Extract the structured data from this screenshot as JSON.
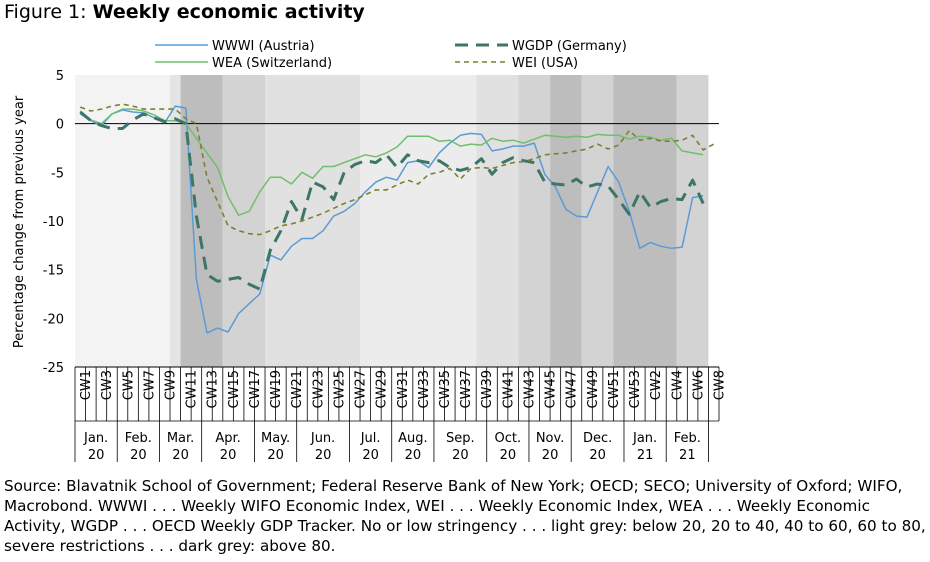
{
  "figure": {
    "title_prefix": "Figure 1: ",
    "title_bold": "Weekly economic activity"
  },
  "source": "Source: Blavatnik School of Government; Federal Reserve Bank of New York; OECD; SECO; University of Oxford; WIFO, Macrobond. WWWI . . . Weekly WIFO Economic Index, WEI . . . Weekly Economic Index, WEA . . . Weekly Economic Activity, WGDP . . . OECD Weekly GDP Tracker. No or low stringency . . . light grey: below 20, 20 to 40, 40 to 60, 60 to 80, severe restrictions . . . dark grey: above 80.",
  "chart_data": {
    "type": "line",
    "ylabel": "Percentage change from previous year",
    "ylim": [
      -25,
      5
    ],
    "yticks": [
      5,
      0,
      -5,
      -10,
      -15,
      -20,
      -25
    ],
    "week_labels": [
      "CW1",
      "CW3",
      "CW5",
      "CW7",
      "CW9",
      "CW11",
      "CW13",
      "CW15",
      "CW17",
      "CW19",
      "CW21",
      "CW23",
      "CW25",
      "CW27",
      "CW29",
      "CW31",
      "CW33",
      "CW35",
      "CW37",
      "CW39",
      "CW41",
      "CW43",
      "CW45",
      "CW47",
      "CW49",
      "CW51",
      "CW53",
      "CW2",
      "CW4",
      "CW6",
      "CW8"
    ],
    "month_labels": [
      {
        "month": "Jan.",
        "year": "20",
        "weeks": [
          1,
          5
        ]
      },
      {
        "month": "Feb.",
        "year": "20",
        "weeks": [
          5,
          9
        ]
      },
      {
        "month": "Mar.",
        "year": "20",
        "weeks": [
          9,
          13
        ]
      },
      {
        "month": "Apr.",
        "year": "20",
        "weeks": [
          13,
          18
        ]
      },
      {
        "month": "May.",
        "year": "20",
        "weeks": [
          18,
          22
        ]
      },
      {
        "month": "Jun.",
        "year": "20",
        "weeks": [
          22,
          27
        ]
      },
      {
        "month": "Jul.",
        "year": "20",
        "weeks": [
          27,
          31
        ]
      },
      {
        "month": "Aug.",
        "year": "20",
        "weeks": [
          31,
          35
        ]
      },
      {
        "month": "Sep.",
        "year": "20",
        "weeks": [
          35,
          40
        ]
      },
      {
        "month": "Oct.",
        "year": "20",
        "weeks": [
          40,
          44
        ]
      },
      {
        "month": "Nov.",
        "year": "20",
        "weeks": [
          44,
          48
        ]
      },
      {
        "month": "Dec.",
        "year": "20",
        "weeks": [
          48,
          53
        ]
      },
      {
        "month": "Jan.",
        "year": "21",
        "weeks": [
          53,
          57
        ]
      },
      {
        "month": "Feb.",
        "year": "21",
        "weeks": [
          57,
          61
        ]
      }
    ],
    "stringency_bands": [
      {
        "weeks": [
          1,
          10
        ],
        "shade": "#f3f3f3"
      },
      {
        "weeks": [
          10,
          11
        ],
        "shade": "#e4e4e4"
      },
      {
        "weeks": [
          11,
          15
        ],
        "shade": "#bdbdbd"
      },
      {
        "weeks": [
          15,
          19
        ],
        "shade": "#d3d3d3"
      },
      {
        "weeks": [
          19,
          28
        ],
        "shade": "#e1e1e1"
      },
      {
        "weeks": [
          28,
          39
        ],
        "shade": "#ececec"
      },
      {
        "weeks": [
          39,
          43
        ],
        "shade": "#e1e1e1"
      },
      {
        "weeks": [
          43,
          46
        ],
        "shade": "#d3d3d3"
      },
      {
        "weeks": [
          46,
          49
        ],
        "shade": "#bdbdbd"
      },
      {
        "weeks": [
          49,
          52
        ],
        "shade": "#d3d3d3"
      },
      {
        "weeks": [
          52,
          58
        ],
        "shade": "#bdbdbd"
      },
      {
        "weeks": [
          58,
          61
        ],
        "shade": "#d3d3d3"
      }
    ],
    "series": [
      {
        "name": "WWWI (Austria)",
        "color": "#5b9bd5",
        "width": 1.5,
        "dash": "",
        "legend_pos": "top-left",
        "weeks": [
          1,
          2,
          3,
          4,
          5,
          6,
          7,
          8,
          9,
          10,
          11,
          12,
          13,
          14,
          15,
          16,
          17,
          18,
          19,
          20,
          21,
          22,
          23,
          24,
          25,
          26,
          27,
          28,
          29,
          30,
          31,
          32,
          33,
          34,
          35,
          36,
          37,
          38,
          39,
          40,
          41,
          42,
          43,
          44,
          45,
          46,
          47,
          48,
          49,
          50,
          51,
          52,
          53,
          54,
          55,
          56,
          57,
          58,
          59,
          60
        ],
        "values": [
          1.0,
          0.3,
          -0.2,
          1.0,
          1.4,
          1.2,
          1.1,
          0.6,
          0.1,
          1.8,
          1.6,
          -16.0,
          -21.5,
          -21.0,
          -21.4,
          -19.5,
          -18.5,
          -17.5,
          -13.5,
          -14.0,
          -12.6,
          -11.8,
          -11.8,
          -11.0,
          -9.5,
          -9.0,
          -8.2,
          -7.0,
          -6.0,
          -5.5,
          -5.8,
          -4.0,
          -3.8,
          -4.5,
          -3.0,
          -2.0,
          -1.2,
          -1.0,
          -1.1,
          -2.8,
          -2.6,
          -2.3,
          -2.3,
          -2.0,
          -5.2,
          -6.5,
          -8.8,
          -9.5,
          -9.6,
          -7.0,
          -4.4,
          -6.0,
          -9.0,
          -12.8,
          -12.2,
          -12.6,
          -12.8,
          -12.7,
          -7.6,
          -7.4
        ]
      },
      {
        "name": "WEA (Switzerland)",
        "color": "#70bf6c",
        "width": 1.5,
        "dash": "",
        "legend_pos": "bottom-left",
        "weeks": [
          1,
          2,
          3,
          4,
          5,
          6,
          7,
          8,
          9,
          10,
          11,
          12,
          13,
          14,
          15,
          16,
          17,
          18,
          19,
          20,
          21,
          22,
          23,
          24,
          25,
          26,
          27,
          28,
          29,
          30,
          31,
          32,
          33,
          34,
          35,
          36,
          37,
          38,
          39,
          40,
          41,
          42,
          43,
          44,
          45,
          46,
          47,
          48,
          49,
          50,
          51,
          52,
          53,
          54,
          55,
          56,
          57,
          58,
          59,
          60
        ],
        "values": [
          1.3,
          0.4,
          0.0,
          1.0,
          1.5,
          1.5,
          1.3,
          0.9,
          0.3,
          0.3,
          0.0,
          -1.5,
          -3.0,
          -4.5,
          -7.5,
          -9.4,
          -9.0,
          -7.0,
          -5.5,
          -5.5,
          -6.2,
          -5.0,
          -5.6,
          -4.4,
          -4.4,
          -4.0,
          -3.6,
          -3.2,
          -3.4,
          -3.0,
          -2.4,
          -1.3,
          -1.3,
          -1.3,
          -1.8,
          -1.7,
          -2.3,
          -2.1,
          -2.2,
          -1.5,
          -1.8,
          -1.7,
          -2.0,
          -1.6,
          -1.2,
          -1.3,
          -1.4,
          -1.3,
          -1.4,
          -1.1,
          -1.2,
          -1.2,
          -1.6,
          -1.3,
          -1.4,
          -1.7,
          -1.5,
          -2.8,
          -3.0,
          -3.2
        ]
      },
      {
        "name": "WGDP (Germany)",
        "color": "#3d7568",
        "width": 3,
        "dash": "13,8",
        "legend_pos": "top-right",
        "weeks": [
          1,
          2,
          3,
          4,
          5,
          6,
          7,
          8,
          9,
          10,
          11,
          12,
          13,
          14,
          15,
          16,
          17,
          18,
          19,
          20,
          21,
          22,
          23,
          24,
          25,
          26,
          27,
          28,
          29,
          30,
          31,
          32,
          33,
          34,
          35,
          36,
          37,
          38,
          39,
          40,
          41,
          42,
          43,
          44,
          45,
          46,
          47,
          48,
          49,
          50,
          51,
          52,
          53,
          54,
          55,
          56,
          57,
          58,
          59,
          60
        ],
        "values": [
          1.2,
          0.3,
          -0.2,
          -0.5,
          -0.5,
          0.4,
          1.0,
          0.6,
          0.2,
          0.5,
          0.0,
          -9.5,
          -15.5,
          -16.2,
          -16.0,
          -15.8,
          -16.5,
          -17.0,
          -13.0,
          -11.0,
          -8.0,
          -9.8,
          -6.0,
          -6.5,
          -7.8,
          -5.0,
          -4.2,
          -3.8,
          -4.0,
          -3.2,
          -4.5,
          -3.2,
          -3.8,
          -4.0,
          -3.8,
          -4.5,
          -4.8,
          -4.5,
          -3.6,
          -5.2,
          -4.0,
          -3.5,
          -3.8,
          -4.0,
          -6.0,
          -6.2,
          -6.3,
          -5.7,
          -6.5,
          -6.2,
          -6.4,
          -7.8,
          -9.3,
          -7.0,
          -8.6,
          -8.0,
          -7.7,
          -7.8,
          -5.8,
          -8.2
        ]
      },
      {
        "name": "WEI (USA)",
        "color": "#7f7f2f",
        "width": 1.6,
        "dash": "5,4",
        "legend_pos": "bottom-right",
        "weeks": [
          1,
          2,
          3,
          4,
          5,
          6,
          7,
          8,
          9,
          10,
          11,
          12,
          13,
          14,
          15,
          16,
          17,
          18,
          19,
          20,
          21,
          22,
          23,
          24,
          25,
          26,
          27,
          28,
          29,
          30,
          31,
          32,
          33,
          34,
          35,
          36,
          37,
          38,
          39,
          40,
          41,
          42,
          43,
          44,
          45,
          46,
          47,
          48,
          49,
          50,
          51,
          52,
          53,
          54,
          55,
          56,
          57,
          58,
          59,
          60,
          61
        ],
        "values": [
          1.7,
          1.3,
          1.5,
          1.8,
          2.0,
          1.8,
          1.5,
          1.5,
          1.5,
          1.5,
          0.5,
          0.0,
          -5.5,
          -8.0,
          -10.5,
          -11.0,
          -11.3,
          -11.4,
          -11.0,
          -10.5,
          -10.3,
          -10.0,
          -9.6,
          -9.2,
          -8.7,
          -8.2,
          -7.8,
          -7.3,
          -6.8,
          -6.8,
          -6.3,
          -5.8,
          -6.2,
          -5.2,
          -5.0,
          -4.6,
          -5.7,
          -4.6,
          -4.5,
          -4.6,
          -4.3,
          -4.0,
          -3.9,
          -3.6,
          -3.2,
          -3.1,
          -3.0,
          -2.8,
          -2.6,
          -2.1,
          -2.6,
          -2.2,
          -0.7,
          -1.7,
          -1.5,
          -1.8,
          -1.8,
          -1.7,
          -1.2,
          -2.7,
          -2.1
        ]
      }
    ]
  }
}
